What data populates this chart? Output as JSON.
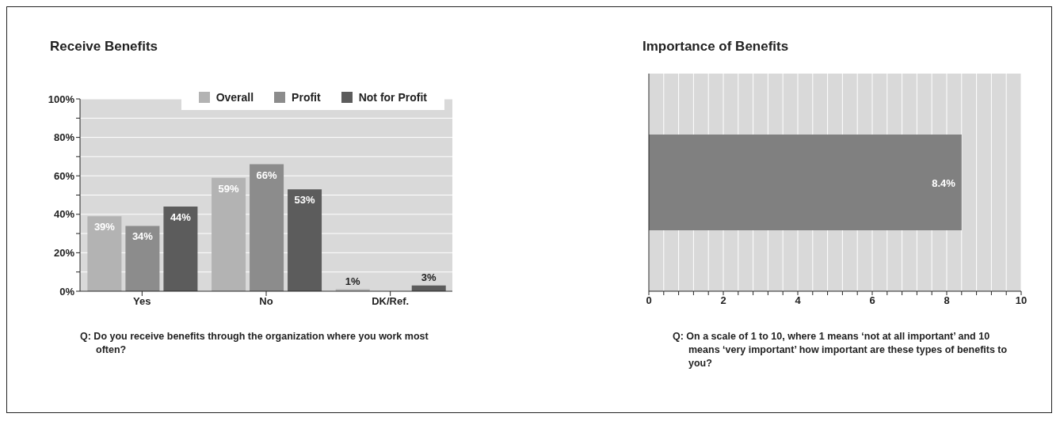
{
  "chart_data": [
    {
      "type": "bar",
      "title": "Receive Benefits",
      "categories": [
        "Yes",
        "No",
        "DK/Ref."
      ],
      "series": [
        {
          "name": "Overall",
          "color": "#b3b3b3",
          "values": [
            39,
            59,
            1
          ],
          "value_labels": [
            "39%",
            "59%",
            "1%"
          ]
        },
        {
          "name": "Profit",
          "color": "#8c8c8c",
          "values": [
            34,
            66,
            null
          ],
          "value_labels": [
            "34%",
            "66%",
            null
          ]
        },
        {
          "name": "Not for Profit",
          "color": "#5c5c5c",
          "values": [
            44,
            53,
            3
          ],
          "value_labels": [
            "44%",
            "53%",
            "3%"
          ]
        }
      ],
      "ylim": [
        0,
        100
      ],
      "yticks": [
        {
          "value": 0,
          "label": "0%"
        },
        {
          "value": 10,
          "label": null
        },
        {
          "value": 20,
          "label": "20%"
        },
        {
          "value": 30,
          "label": null
        },
        {
          "value": 40,
          "label": "40%"
        },
        {
          "value": 50,
          "label": null
        },
        {
          "value": 60,
          "label": "60%"
        },
        {
          "value": 70,
          "label": null
        },
        {
          "value": 80,
          "label": "80%"
        },
        {
          "value": 90,
          "label": null
        },
        {
          "value": 100,
          "label": "100%"
        }
      ],
      "grid": "y",
      "legend": "top right",
      "annotations": [
        "Q:  Do you receive benefits through the organization where you work most often?"
      ]
    },
    {
      "type": "bar",
      "orientation": "horizontal",
      "title": "Importance of Benefits",
      "categories": [
        null
      ],
      "values": [
        8.4
      ],
      "value_labels": [
        "8.4%"
      ],
      "color": "#808080",
      "xlim": [
        0,
        10
      ],
      "xticks": [
        0,
        {
          "value": 0.4,
          "label": null
        },
        {
          "value": 0.8,
          "label": null
        },
        {
          "value": 1.2,
          "label": null
        },
        {
          "value": 1.6,
          "label": null
        },
        2,
        {
          "value": 2.4,
          "label": null
        },
        {
          "value": 2.8,
          "label": null
        },
        {
          "value": 3.2,
          "label": null
        },
        {
          "value": 3.6,
          "label": null
        },
        4,
        {
          "value": 4.4,
          "label": null
        },
        {
          "value": 4.8,
          "label": null
        },
        {
          "value": 5.2,
          "label": null
        },
        {
          "value": 5.6,
          "label": null
        },
        6,
        {
          "value": 6.4,
          "label": null
        },
        {
          "value": 6.8,
          "label": null
        },
        {
          "value": 7.2,
          "label": null
        },
        {
          "value": 7.6,
          "label": null
        },
        8,
        {
          "value": 8.4,
          "label": null
        },
        {
          "value": 8.8,
          "label": null
        },
        {
          "value": 9.2,
          "label": null
        },
        {
          "value": 9.6,
          "label": null
        },
        10
      ],
      "grid": "x",
      "annotations": [
        "Q:  On a scale of 1 to 10, where 1 means ‘not at all important’ and 10 means ‘very important’ how important are these types of benefits to you?"
      ]
    }
  ]
}
